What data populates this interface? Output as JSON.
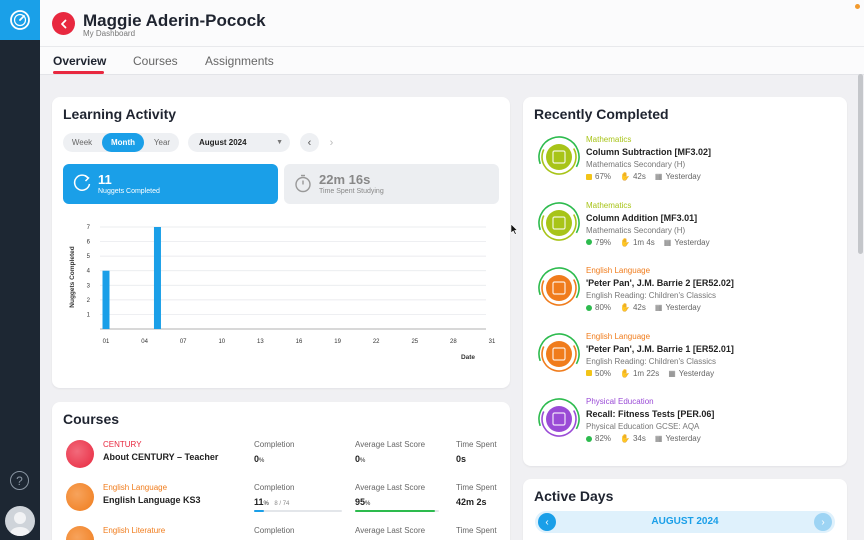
{
  "header": {
    "name": "Maggie Aderin-Pocock",
    "subtitle": "My Dashboard",
    "tabs": [
      {
        "label": "Overview",
        "active": true
      },
      {
        "label": "Courses",
        "active": false
      },
      {
        "label": "Assignments",
        "active": false
      }
    ]
  },
  "learning_activity": {
    "title": "Learning Activity",
    "period_options": [
      "Week",
      "Month",
      "Year"
    ],
    "selected_period": "Month",
    "selected_month": "August 2024",
    "nuggets_completed": {
      "value": "11",
      "label": "Nuggets Completed"
    },
    "time_spent": {
      "value": "22m 16s",
      "label": "Time Spent Studying"
    }
  },
  "chart_data": {
    "type": "bar",
    "xlabel": "Date",
    "ylabel": "Nuggets Completed",
    "ylim": [
      0,
      7
    ],
    "yticks": [
      "1",
      "2",
      "3",
      "4",
      "5",
      "6",
      "7"
    ],
    "xticks": [
      "01",
      "04",
      "07",
      "10",
      "13",
      "16",
      "19",
      "22",
      "25",
      "28",
      "31"
    ],
    "x": [
      1,
      5
    ],
    "values": [
      4,
      7
    ],
    "xlim": [
      1,
      31
    ],
    "bar_color": "#1a9fe8",
    "grid": true
  },
  "courses": {
    "title": "Courses",
    "headers": {
      "completion": "Completion",
      "avg_score": "Average Last Score",
      "time_spent": "Time Spent"
    },
    "rows": [
      {
        "subject": "CENTURY",
        "subject_color": "#e8283f",
        "name": "About CENTURY – Teacher",
        "completion": "0",
        "completion_unit": "%",
        "completion_detail": "",
        "completion_pct": 0,
        "avg_score": "0",
        "avg_unit": "%",
        "avg_pct": 0,
        "time": "0s"
      },
      {
        "subject": "English Language",
        "subject_color": "#f07c1c",
        "name": "English Language KS3",
        "completion": "11",
        "completion_unit": "%",
        "completion_detail": "8 / 74",
        "completion_pct": 11,
        "avg_score": "95",
        "avg_unit": "%",
        "avg_pct": 95,
        "time": "42m 2s"
      },
      {
        "subject": "English Literature",
        "subject_color": "#f07c1c",
        "name": "",
        "completion": "",
        "completion_unit": "",
        "completion_detail": "",
        "completion_pct": 0,
        "avg_score": "",
        "avg_unit": "",
        "avg_pct": 0,
        "time": ""
      }
    ]
  },
  "recently_completed": {
    "title": "Recently Completed",
    "items": [
      {
        "subject": "Mathematics",
        "subject_color": "#a8c418",
        "title": "Column Subtraction [MF3.02]",
        "course": "Mathematics Secondary (H)",
        "score": "67%",
        "score_color": "#f2c418",
        "time": "42s",
        "when": "Yesterday"
      },
      {
        "subject": "Mathematics",
        "subject_color": "#a8c418",
        "title": "Column Addition [MF3.01]",
        "course": "Mathematics Secondary (H)",
        "score": "79%",
        "score_color": "#2dbb4e",
        "time": "1m 4s",
        "when": "Yesterday"
      },
      {
        "subject": "English Language",
        "subject_color": "#f07c1c",
        "title": "'Peter Pan', J.M. Barrie 2 [ER52.02]",
        "course": "English Reading: Children's Classics",
        "score": "80%",
        "score_color": "#2dbb4e",
        "time": "42s",
        "when": "Yesterday"
      },
      {
        "subject": "English Language",
        "subject_color": "#f07c1c",
        "title": "'Peter Pan', J.M. Barrie 1 [ER52.01]",
        "course": "English Reading: Children's Classics",
        "score": "50%",
        "score_color": "#f2c418",
        "time": "1m 22s",
        "when": "Yesterday"
      },
      {
        "subject": "Physical Education",
        "subject_color": "#9a4bd6",
        "title": "Recall: Fitness Tests [PER.06]",
        "course": "Physical Education GCSE: AQA",
        "score": "82%",
        "score_color": "#2dbb4e",
        "time": "34s",
        "when": "Yesterday"
      }
    ]
  },
  "active_days": {
    "title": "Active Days",
    "month": "AUGUST 2024"
  },
  "icons": {
    "logo": "gauge-icon",
    "back": "chevron-left-icon",
    "help": "question-icon",
    "nuggets": "refresh-icon",
    "timer": "stopwatch-icon"
  }
}
